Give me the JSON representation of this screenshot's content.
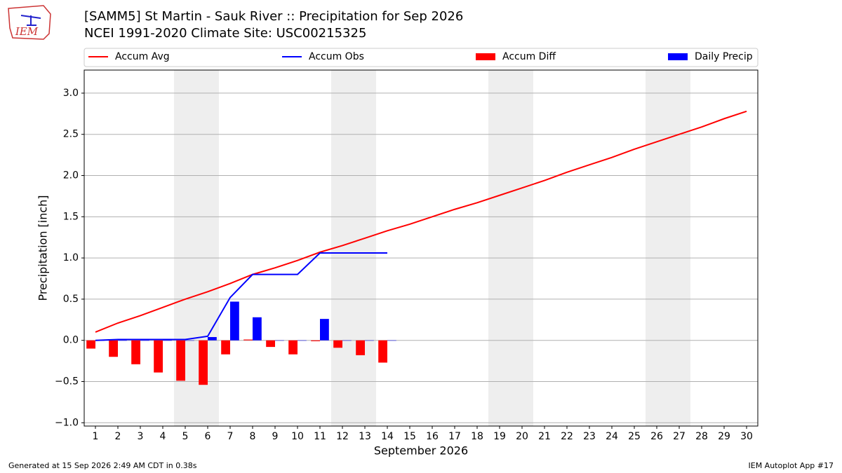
{
  "logo_text": "IEM",
  "chart_data": {
    "type": "bar_line",
    "title": "[SAMM5] St Martin - Sauk River :: Precipitation for Sep 2026",
    "subtitle": "NCEI 1991-2020 Climate Site: USC00215325",
    "xlabel": "September 2026",
    "ylabel": "Precipitation [inch]",
    "x": [
      1,
      2,
      3,
      4,
      5,
      6,
      7,
      8,
      9,
      10,
      11,
      12,
      13,
      14,
      15,
      16,
      17,
      18,
      19,
      20,
      21,
      22,
      23,
      24,
      25,
      26,
      27,
      28,
      29,
      30
    ],
    "xlim": [
      0.5,
      30.5
    ],
    "xticks": [
      1,
      2,
      3,
      4,
      5,
      6,
      7,
      8,
      9,
      10,
      11,
      12,
      13,
      14,
      15,
      16,
      17,
      18,
      19,
      20,
      21,
      22,
      23,
      24,
      25,
      26,
      27,
      28,
      29,
      30
    ],
    "ylim": [
      -1.04,
      3.28
    ],
    "yticks": [
      {
        "value": -1,
        "label": "−1.0"
      },
      {
        "value": -0.5,
        "label": "−0.5"
      },
      {
        "value": 0,
        "label": "0.0"
      },
      {
        "value": 0.5,
        "label": "0.5"
      },
      {
        "value": 1,
        "label": "1.0"
      },
      {
        "value": 1.5,
        "label": "1.5"
      },
      {
        "value": 2,
        "label": "2.0"
      },
      {
        "value": 2.5,
        "label": "2.5"
      },
      {
        "value": 3,
        "label": "3.0"
      }
    ],
    "grid": true,
    "shaded_spans": [
      [
        4.5,
        6.5
      ],
      [
        11.5,
        13.5
      ],
      [
        18.5,
        20.5
      ],
      [
        25.5,
        27.5
      ]
    ],
    "series": [
      {
        "name": "Accum Avg",
        "kind": "line",
        "color": "#ff0000",
        "values": [
          0.1,
          0.21,
          0.3,
          0.4,
          0.5,
          0.59,
          0.69,
          0.8,
          0.88,
          0.97,
          1.07,
          1.15,
          1.24,
          1.33,
          1.41,
          1.5,
          1.59,
          1.67,
          1.76,
          1.85,
          1.94,
          2.04,
          2.13,
          2.22,
          2.32,
          2.41,
          2.5,
          2.59,
          2.69,
          2.78
        ]
      },
      {
        "name": "Accum Obs",
        "kind": "line",
        "color": "#0000ff",
        "values": [
          0.0,
          0.01,
          0.01,
          0.01,
          0.01,
          0.05,
          0.52,
          0.8,
          0.8,
          0.8,
          1.06,
          1.06,
          1.06,
          1.06,
          null,
          null,
          null,
          null,
          null,
          null,
          null,
          null,
          null,
          null,
          null,
          null,
          null,
          null,
          null,
          null
        ]
      },
      {
        "name": "Accum Diff",
        "kind": "bar",
        "offset": -0.4,
        "color": "#ff0000",
        "values": [
          -0.1,
          -0.2,
          -0.29,
          -0.39,
          -0.49,
          -0.54,
          -0.17,
          0.01,
          -0.08,
          -0.17,
          -0.01,
          -0.09,
          -0.18,
          -0.27,
          null,
          null,
          null,
          null,
          null,
          null,
          null,
          null,
          null,
          null,
          null,
          null,
          null,
          null,
          null,
          null
        ]
      },
      {
        "name": "Daily Precip",
        "kind": "bar",
        "offset": 0,
        "color": "#0000ff",
        "values": [
          0,
          0,
          0,
          0,
          0,
          0.04,
          0.47,
          0.28,
          0,
          0,
          0.26,
          0,
          0,
          0,
          null,
          null,
          null,
          null,
          null,
          null,
          null,
          null,
          null,
          null,
          null,
          null,
          null,
          null,
          null,
          null
        ]
      }
    ],
    "footer_left": "Generated at 15 Sep 2026 2:49 AM CDT in 0.38s",
    "footer_right": "IEM Autoplot App #17"
  }
}
